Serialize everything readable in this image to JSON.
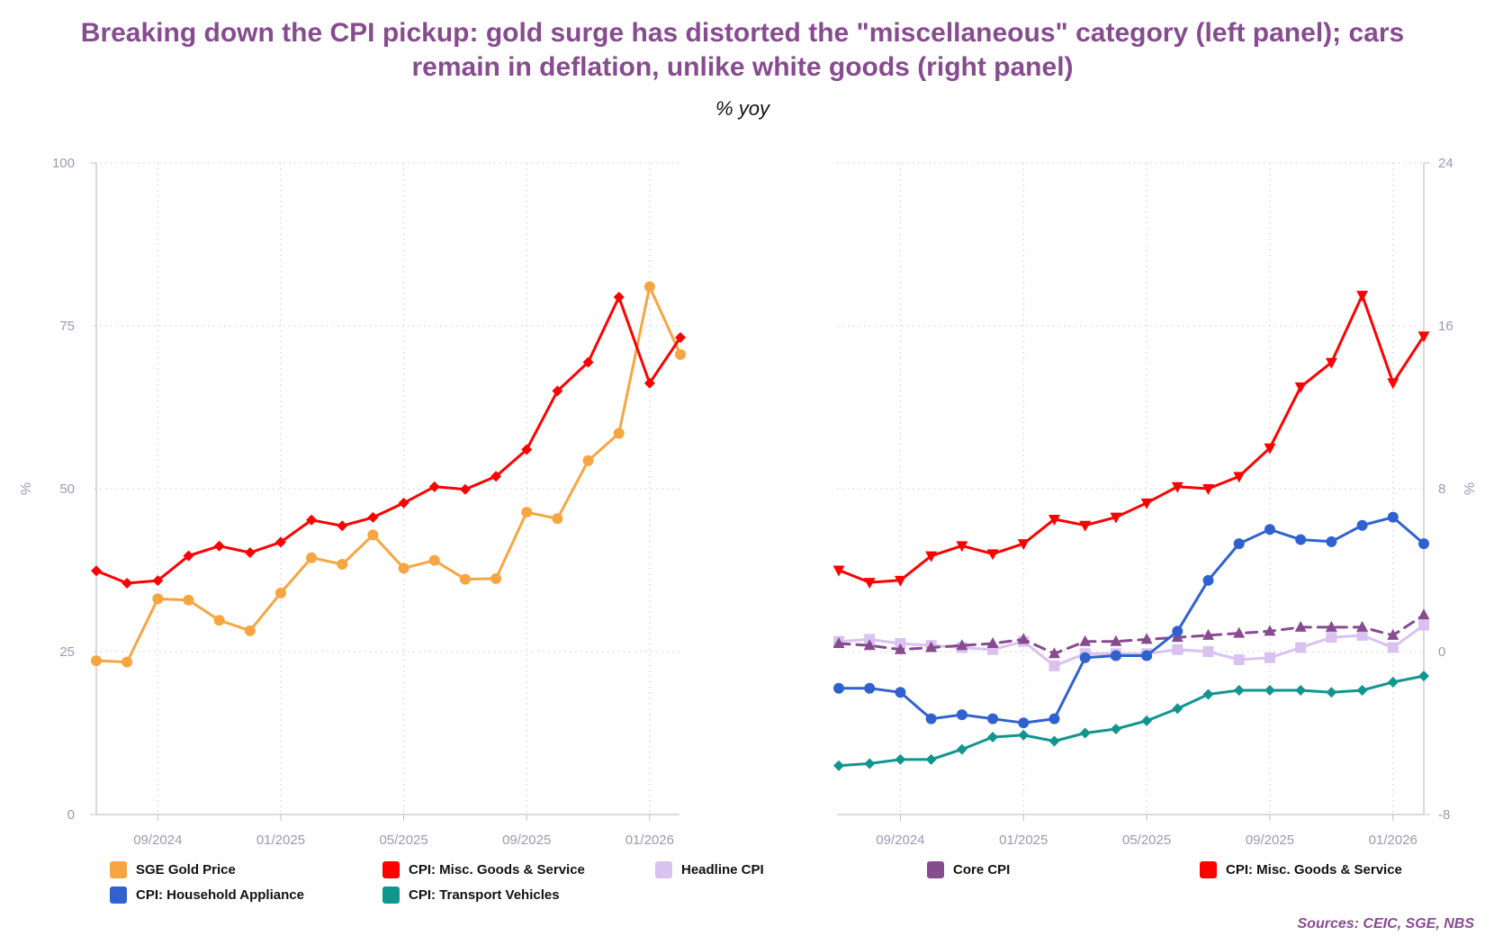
{
  "title_line1": "Breaking down the CPI pickup: gold surge has distorted the \"miscellaneous\" category (left panel); cars",
  "title_line2": "remain in deflation, unlike white goods (right panel)",
  "subtitle": "% yoy",
  "source": "Sources: CEIC, SGE, NBS",
  "chart_data": [
    {
      "type": "line",
      "panel": "left",
      "x": [
        "07/2024",
        "08/2024",
        "09/2024",
        "10/2024",
        "11/2024",
        "12/2024",
        "01/2025",
        "02/2025",
        "03/2025",
        "04/2025",
        "05/2025",
        "06/2025",
        "07/2025",
        "08/2025",
        "09/2025",
        "10/2025",
        "11/2025",
        "12/2025",
        "01/2026",
        "02/2026"
      ],
      "xticks": [
        "09/2024",
        "01/2025",
        "05/2025",
        "09/2025",
        "01/2026"
      ],
      "ylabel": "%",
      "ylim": [
        0,
        100
      ],
      "yticks": [
        "0",
        "25",
        "50",
        "75",
        "100"
      ],
      "series": [
        {
          "name": "SGE Gold Price",
          "color": "#f7a541",
          "marker": "circle",
          "values": [
            23.6,
            23.4,
            33.1,
            32.9,
            29.8,
            28.2,
            34.0,
            39.4,
            38.4,
            42.9,
            37.8,
            39.0,
            36.1,
            36.2,
            46.4,
            45.4,
            54.3,
            58.5,
            81.0,
            70.6
          ]
        },
        {
          "name": "CPI: Misc. Goods & Service",
          "color": "#ff0000",
          "marker": "diamond",
          "values": [
            37.4,
            35.5,
            35.9,
            39.7,
            41.2,
            40.2,
            41.8,
            45.2,
            44.3,
            45.6,
            47.8,
            50.3,
            49.9,
            51.9,
            56.0,
            65.0,
            69.4,
            79.4,
            66.2,
            73.2
          ]
        }
      ]
    },
    {
      "type": "line",
      "panel": "right",
      "x": [
        "07/2024",
        "08/2024",
        "09/2024",
        "10/2024",
        "11/2024",
        "12/2024",
        "01/2025",
        "02/2025",
        "03/2025",
        "04/2025",
        "05/2025",
        "06/2025",
        "07/2025",
        "08/2025",
        "09/2025",
        "10/2025",
        "11/2025",
        "12/2025",
        "01/2026",
        "02/2026"
      ],
      "xticks": [
        "09/2024",
        "01/2025",
        "05/2025",
        "09/2025",
        "01/2026"
      ],
      "ylabel": "%",
      "ylim": [
        -8,
        24
      ],
      "yticks": [
        "-8",
        "0",
        "8",
        "16",
        "24"
      ],
      "series": [
        {
          "name": "Headline CPI",
          "color": "#d9c2f0",
          "marker": "square",
          "dash": false,
          "values": [
            0.5,
            0.6,
            0.4,
            0.3,
            0.2,
            0.1,
            0.5,
            -0.7,
            -0.1,
            -0.1,
            -0.1,
            0.1,
            0.0,
            -0.4,
            -0.3,
            0.2,
            0.7,
            0.8,
            0.2,
            1.3
          ]
        },
        {
          "name": "Core CPI",
          "color": "#874b8f",
          "marker": "triangle",
          "dash": true,
          "values": [
            0.4,
            0.3,
            0.1,
            0.2,
            0.3,
            0.4,
            0.6,
            -0.1,
            0.5,
            0.5,
            0.6,
            0.7,
            0.8,
            0.9,
            1.0,
            1.2,
            1.2,
            1.2,
            0.8,
            1.8
          ]
        },
        {
          "name": "CPI: Misc. Goods & Service",
          "color": "#ff0000",
          "marker": "triangle-down",
          "dash": false,
          "values": [
            4.0,
            3.4,
            3.5,
            4.7,
            5.2,
            4.8,
            5.3,
            6.5,
            6.2,
            6.6,
            7.3,
            8.1,
            8.0,
            8.6,
            10.0,
            13.0,
            14.2,
            17.5,
            13.2,
            15.5
          ]
        },
        {
          "name": "CPI: Household Appliance",
          "color": "#2f62cf",
          "marker": "circle",
          "dash": false,
          "values": [
            -1.8,
            -1.8,
            -2.0,
            -3.3,
            -3.1,
            -3.3,
            -3.5,
            -3.3,
            -0.3,
            -0.2,
            -0.2,
            1.0,
            3.5,
            5.3,
            6.0,
            5.5,
            5.4,
            6.2,
            6.6,
            5.3
          ]
        },
        {
          "name": "CPI: Transport Vehicles",
          "color": "#10968f",
          "marker": "diamond",
          "dash": false,
          "values": [
            -5.6,
            -5.5,
            -5.3,
            -5.3,
            -4.8,
            -4.2,
            -4.1,
            -4.4,
            -4.0,
            -3.8,
            -3.4,
            -2.8,
            -2.1,
            -1.9,
            -1.9,
            -1.9,
            -2.0,
            -1.9,
            -1.5,
            -1.2
          ]
        }
      ]
    }
  ],
  "legend": [
    {
      "label": "SGE Gold Price",
      "color": "#f7a541"
    },
    {
      "label": "CPI: Misc. Goods & Service",
      "color": "#ff0000"
    },
    {
      "label": "Headline CPI",
      "color": "#d9c2f0"
    },
    {
      "label": "Core CPI",
      "color": "#874b8f"
    },
    {
      "label": "CPI: Misc. Goods & Service",
      "color": "#ff0000"
    },
    {
      "label": "CPI: Household Appliance",
      "color": "#2f62cf"
    },
    {
      "label": "CPI: Transport Vehicles",
      "color": "#10968f"
    }
  ]
}
